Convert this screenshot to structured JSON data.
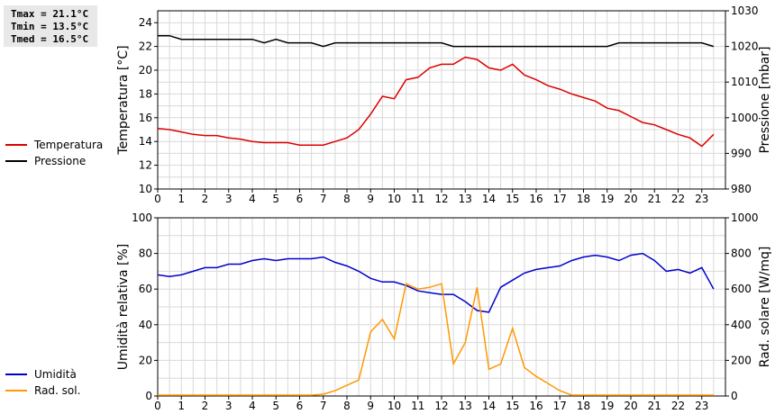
{
  "stats": {
    "tmax": "Tmax = 21.1°C",
    "tmin": "Tmin = 13.5°C",
    "tmed": "Tmed = 16.5°C"
  },
  "chart_data": [
    {
      "type": "line",
      "x_ticks": [
        0,
        1,
        2,
        3,
        4,
        5,
        6,
        7,
        8,
        9,
        10,
        11,
        12,
        13,
        14,
        15,
        16,
        17,
        18,
        19,
        20,
        21,
        22,
        23
      ],
      "xlim": [
        0,
        24
      ],
      "ylabel": "Temperatura [°C]",
      "ylabel2": "Pressione [mbar]",
      "ylim": [
        10,
        25
      ],
      "y_ticks": [
        10,
        12,
        14,
        16,
        18,
        20,
        22,
        24
      ],
      "ylim2": [
        980,
        1030
      ],
      "y2_ticks": [
        980,
        990,
        1000,
        1010,
        1020,
        1030
      ],
      "grid": true,
      "legend_position": "left",
      "series": [
        {
          "name": "Temperatura",
          "axis": "left",
          "color": "#dd0000",
          "x": [
            0,
            0.5,
            1,
            1.5,
            2,
            2.5,
            3,
            3.5,
            4,
            4.5,
            5,
            5.5,
            6,
            6.5,
            7,
            7.5,
            8,
            8.5,
            9,
            9.5,
            10,
            10.5,
            11,
            11.5,
            12,
            12.5,
            13,
            13.5,
            14,
            14.5,
            15,
            15.5,
            16,
            16.5,
            17,
            17.5,
            18,
            18.5,
            19,
            19.5,
            20,
            20.5,
            21,
            21.5,
            22,
            22.5,
            23,
            23.5
          ],
          "y": [
            15.1,
            15.0,
            14.8,
            14.6,
            14.5,
            14.5,
            14.3,
            14.2,
            14.0,
            13.9,
            13.9,
            13.9,
            13.7,
            13.7,
            13.7,
            14.0,
            14.3,
            15.0,
            16.3,
            17.8,
            17.6,
            19.2,
            19.4,
            20.2,
            20.5,
            20.5,
            21.1,
            20.9,
            20.2,
            20.0,
            20.5,
            19.6,
            19.2,
            18.7,
            18.4,
            18.0,
            17.7,
            17.4,
            16.8,
            16.6,
            16.1,
            15.6,
            15.4,
            15.0,
            14.6,
            14.3,
            13.6,
            14.6
          ]
        },
        {
          "name": "Pressione",
          "axis": "right",
          "color": "#000000",
          "x": [
            0,
            0.5,
            1,
            1.5,
            2,
            2.5,
            3,
            3.5,
            4,
            4.5,
            5,
            5.5,
            6,
            6.5,
            7,
            7.5,
            8,
            8.5,
            9,
            9.5,
            10,
            10.5,
            11,
            11.5,
            12,
            12.5,
            13,
            13.5,
            14,
            14.5,
            15,
            15.5,
            16,
            16.5,
            17,
            17.5,
            18,
            18.5,
            19,
            19.5,
            20,
            20.5,
            21,
            21.5,
            22,
            22.5,
            23,
            23.5
          ],
          "y": [
            1023,
            1023,
            1022,
            1022,
            1022,
            1022,
            1022,
            1022,
            1022,
            1021,
            1022,
            1021,
            1021,
            1021,
            1020,
            1021,
            1021,
            1021,
            1021,
            1021,
            1021,
            1021,
            1021,
            1021,
            1021,
            1020,
            1020,
            1020,
            1020,
            1020,
            1020,
            1020,
            1020,
            1020,
            1020,
            1020,
            1020,
            1020,
            1020,
            1021,
            1021,
            1021,
            1021,
            1021,
            1021,
            1021,
            1021,
            1020
          ]
        }
      ]
    },
    {
      "type": "line",
      "x_ticks": [
        0,
        1,
        2,
        3,
        4,
        5,
        6,
        7,
        8,
        9,
        10,
        11,
        12,
        13,
        14,
        15,
        16,
        17,
        18,
        19,
        20,
        21,
        22,
        23
      ],
      "xlim": [
        0,
        24
      ],
      "ylabel": "Umidità relativa [%]",
      "ylabel2": "Rad. solare [W/mq]",
      "ylim": [
        0,
        100
      ],
      "y_ticks": [
        0,
        20,
        40,
        60,
        80,
        100
      ],
      "ylim2": [
        0,
        1000
      ],
      "y2_ticks": [
        0,
        200,
        400,
        600,
        800,
        1000
      ],
      "grid": true,
      "legend_position": "left",
      "series": [
        {
          "name": "Umidità",
          "axis": "left",
          "color": "#0000cc",
          "x": [
            0,
            0.5,
            1,
            1.5,
            2,
            2.5,
            3,
            3.5,
            4,
            4.5,
            5,
            5.5,
            6,
            6.5,
            7,
            7.5,
            8,
            8.5,
            9,
            9.5,
            10,
            10.5,
            11,
            11.5,
            12,
            12.5,
            13,
            13.5,
            14,
            14.5,
            15,
            15.5,
            16,
            16.5,
            17,
            17.5,
            18,
            18.5,
            19,
            19.5,
            20,
            20.5,
            21,
            21.5,
            22,
            22.5,
            23,
            23.5
          ],
          "y": [
            68,
            67,
            68,
            70,
            72,
            72,
            74,
            74,
            76,
            77,
            76,
            77,
            77,
            77,
            78,
            75,
            73,
            70,
            66,
            64,
            64,
            62,
            59,
            58,
            57,
            57,
            53,
            48,
            47,
            61,
            65,
            69,
            71,
            72,
            73,
            76,
            78,
            79,
            78,
            76,
            79,
            80,
            76,
            70,
            71,
            69,
            72,
            60
          ]
        },
        {
          "name": "Rad. sol.",
          "axis": "right",
          "color": "#ff9900",
          "x": [
            0,
            0.5,
            1,
            1.5,
            2,
            2.5,
            3,
            3.5,
            4,
            4.5,
            5,
            5.5,
            6,
            6.5,
            7,
            7.5,
            8,
            8.5,
            9,
            9.5,
            10,
            10.5,
            11,
            11.5,
            12,
            12.5,
            13,
            13.5,
            14,
            14.5,
            15,
            15.5,
            16,
            16.5,
            17,
            17.5,
            18,
            18.5,
            19,
            19.5,
            20,
            20.5,
            21,
            21.5,
            22,
            22.5,
            23,
            23.5
          ],
          "y": [
            5,
            5,
            5,
            5,
            5,
            5,
            5,
            5,
            5,
            5,
            5,
            5,
            5,
            5,
            10,
            30,
            60,
            90,
            360,
            430,
            320,
            630,
            600,
            610,
            630,
            180,
            300,
            610,
            150,
            180,
            380,
            160,
            110,
            70,
            30,
            5,
            5,
            5,
            5,
            5,
            5,
            5,
            5,
            5,
            5,
            5,
            5,
            5
          ]
        }
      ]
    }
  ]
}
